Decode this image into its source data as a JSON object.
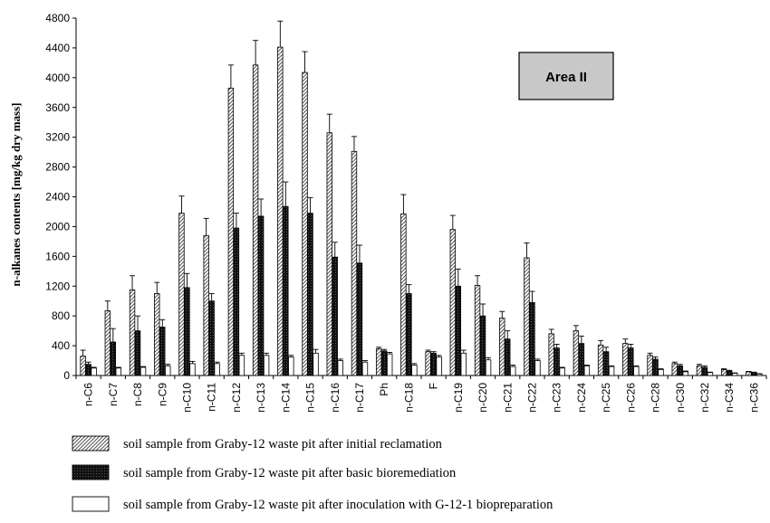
{
  "chart_data": {
    "type": "bar",
    "title": "",
    "area_label": "Area II",
    "ylabel": "n-alkanes contents [mg/kg dry mass]",
    "xlabel": "",
    "ylim": [
      0,
      4800
    ],
    "y_ticks": [
      0,
      400,
      800,
      1200,
      1600,
      2000,
      2400,
      2800,
      3200,
      3600,
      4000,
      4400,
      4800
    ],
    "grid": false,
    "legend_position": "bottom",
    "categories": [
      "n-C6",
      "n-C7",
      "n-C8",
      "n-C9",
      "n-C10",
      "n-C11",
      "n-C12",
      "n-C13",
      "n-C14",
      "n-C15",
      "n-C16",
      "n-C17",
      "Ph",
      "n-C18",
      "F",
      "n-C19",
      "n-C20",
      "n-C21",
      "n-C22",
      "n-C23",
      "n-C24",
      "n-C25",
      "n-C26",
      "n-C28",
      "n-C30",
      "n-C32",
      "n-C34",
      "n-C36"
    ],
    "series": [
      {
        "name": "soil sample from Graby-12 waste pit after initial reclamation",
        "pattern": "hatched",
        "values": [
          260,
          870,
          1150,
          1100,
          2180,
          1880,
          3860,
          4170,
          4410,
          4070,
          3260,
          3010,
          360,
          2170,
          320,
          1960,
          1210,
          770,
          1580,
          560,
          600,
          410,
          430,
          270,
          160,
          130,
          80,
          50
        ],
        "errors": [
          80,
          130,
          190,
          150,
          230,
          230,
          310,
          330,
          350,
          280,
          250,
          200,
          20,
          260,
          20,
          190,
          130,
          90,
          200,
          60,
          70,
          60,
          60,
          30,
          20,
          20,
          10,
          5
        ]
      },
      {
        "name": "soil sample from Graby-12 waste pit after basic bioremediation",
        "pattern": "dotted-black",
        "values": [
          150,
          450,
          600,
          650,
          1180,
          1000,
          1980,
          2140,
          2270,
          2180,
          1590,
          1510,
          330,
          1100,
          300,
          1200,
          800,
          490,
          980,
          370,
          430,
          320,
          370,
          220,
          130,
          110,
          60,
          40
        ],
        "errors": [
          30,
          180,
          200,
          100,
          190,
          100,
          200,
          230,
          330,
          210,
          200,
          240,
          20,
          120,
          20,
          230,
          160,
          110,
          150,
          50,
          100,
          60,
          50,
          30,
          20,
          20,
          10,
          5
        ]
      },
      {
        "name": "soil sample from Graby-12 waste pit after inoculation with G-12-1 biopreparation",
        "pattern": "white",
        "values": [
          100,
          100,
          110,
          130,
          160,
          160,
          270,
          270,
          250,
          300,
          200,
          180,
          290,
          140,
          250,
          300,
          210,
          120,
          200,
          100,
          130,
          120,
          120,
          80,
          50,
          40,
          30,
          20
        ],
        "errors": [
          10,
          10,
          10,
          20,
          30,
          20,
          30,
          30,
          20,
          50,
          20,
          20,
          20,
          20,
          20,
          40,
          30,
          20,
          20,
          10,
          10,
          10,
          10,
          10,
          10,
          5,
          5,
          5
        ]
      }
    ]
  }
}
